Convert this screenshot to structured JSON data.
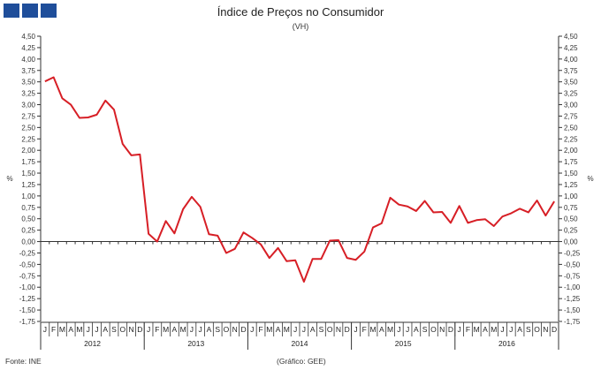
{
  "header": {
    "title": "Índice de Preços no Consumidor",
    "subtitle": "(VH)"
  },
  "footer": {
    "source": "Fonte: INE",
    "credit": "(Gráfico: GEE)"
  },
  "colors": {
    "line": "#d71f26",
    "axis": "#333333",
    "logo": "#1f4e9a"
  },
  "chart_data": {
    "type": "line",
    "title": "Índice de Preços no Consumidor",
    "subtitle": "(VH)",
    "ylabel": "%",
    "ylim": [
      -1.75,
      4.5
    ],
    "ytick_step": 0.25,
    "grid": false,
    "month_labels": [
      "J",
      "F",
      "M",
      "A",
      "M",
      "J",
      "J",
      "A",
      "S",
      "O",
      "N",
      "D"
    ],
    "years": [
      "2012",
      "2013",
      "2014",
      "2015",
      "2016"
    ],
    "series": [
      {
        "values": [
          3.51,
          3.6,
          3.14,
          3.0,
          2.71,
          2.72,
          2.78,
          3.09,
          2.89,
          2.14,
          1.89,
          1.91,
          0.17,
          0.0,
          0.45,
          0.18,
          0.71,
          0.98,
          0.76,
          0.16,
          0.13,
          -0.25,
          -0.16,
          0.2,
          0.08,
          -0.06,
          -0.36,
          -0.14,
          -0.43,
          -0.41,
          -0.88,
          -0.38,
          -0.38,
          0.02,
          0.03,
          -0.36,
          -0.4,
          -0.22,
          0.31,
          0.4,
          0.96,
          0.81,
          0.77,
          0.67,
          0.89,
          0.64,
          0.65,
          0.41,
          0.78,
          0.41,
          0.47,
          0.49,
          0.34,
          0.55,
          0.62,
          0.72,
          0.64,
          0.9,
          0.57,
          0.88
        ]
      }
    ]
  }
}
